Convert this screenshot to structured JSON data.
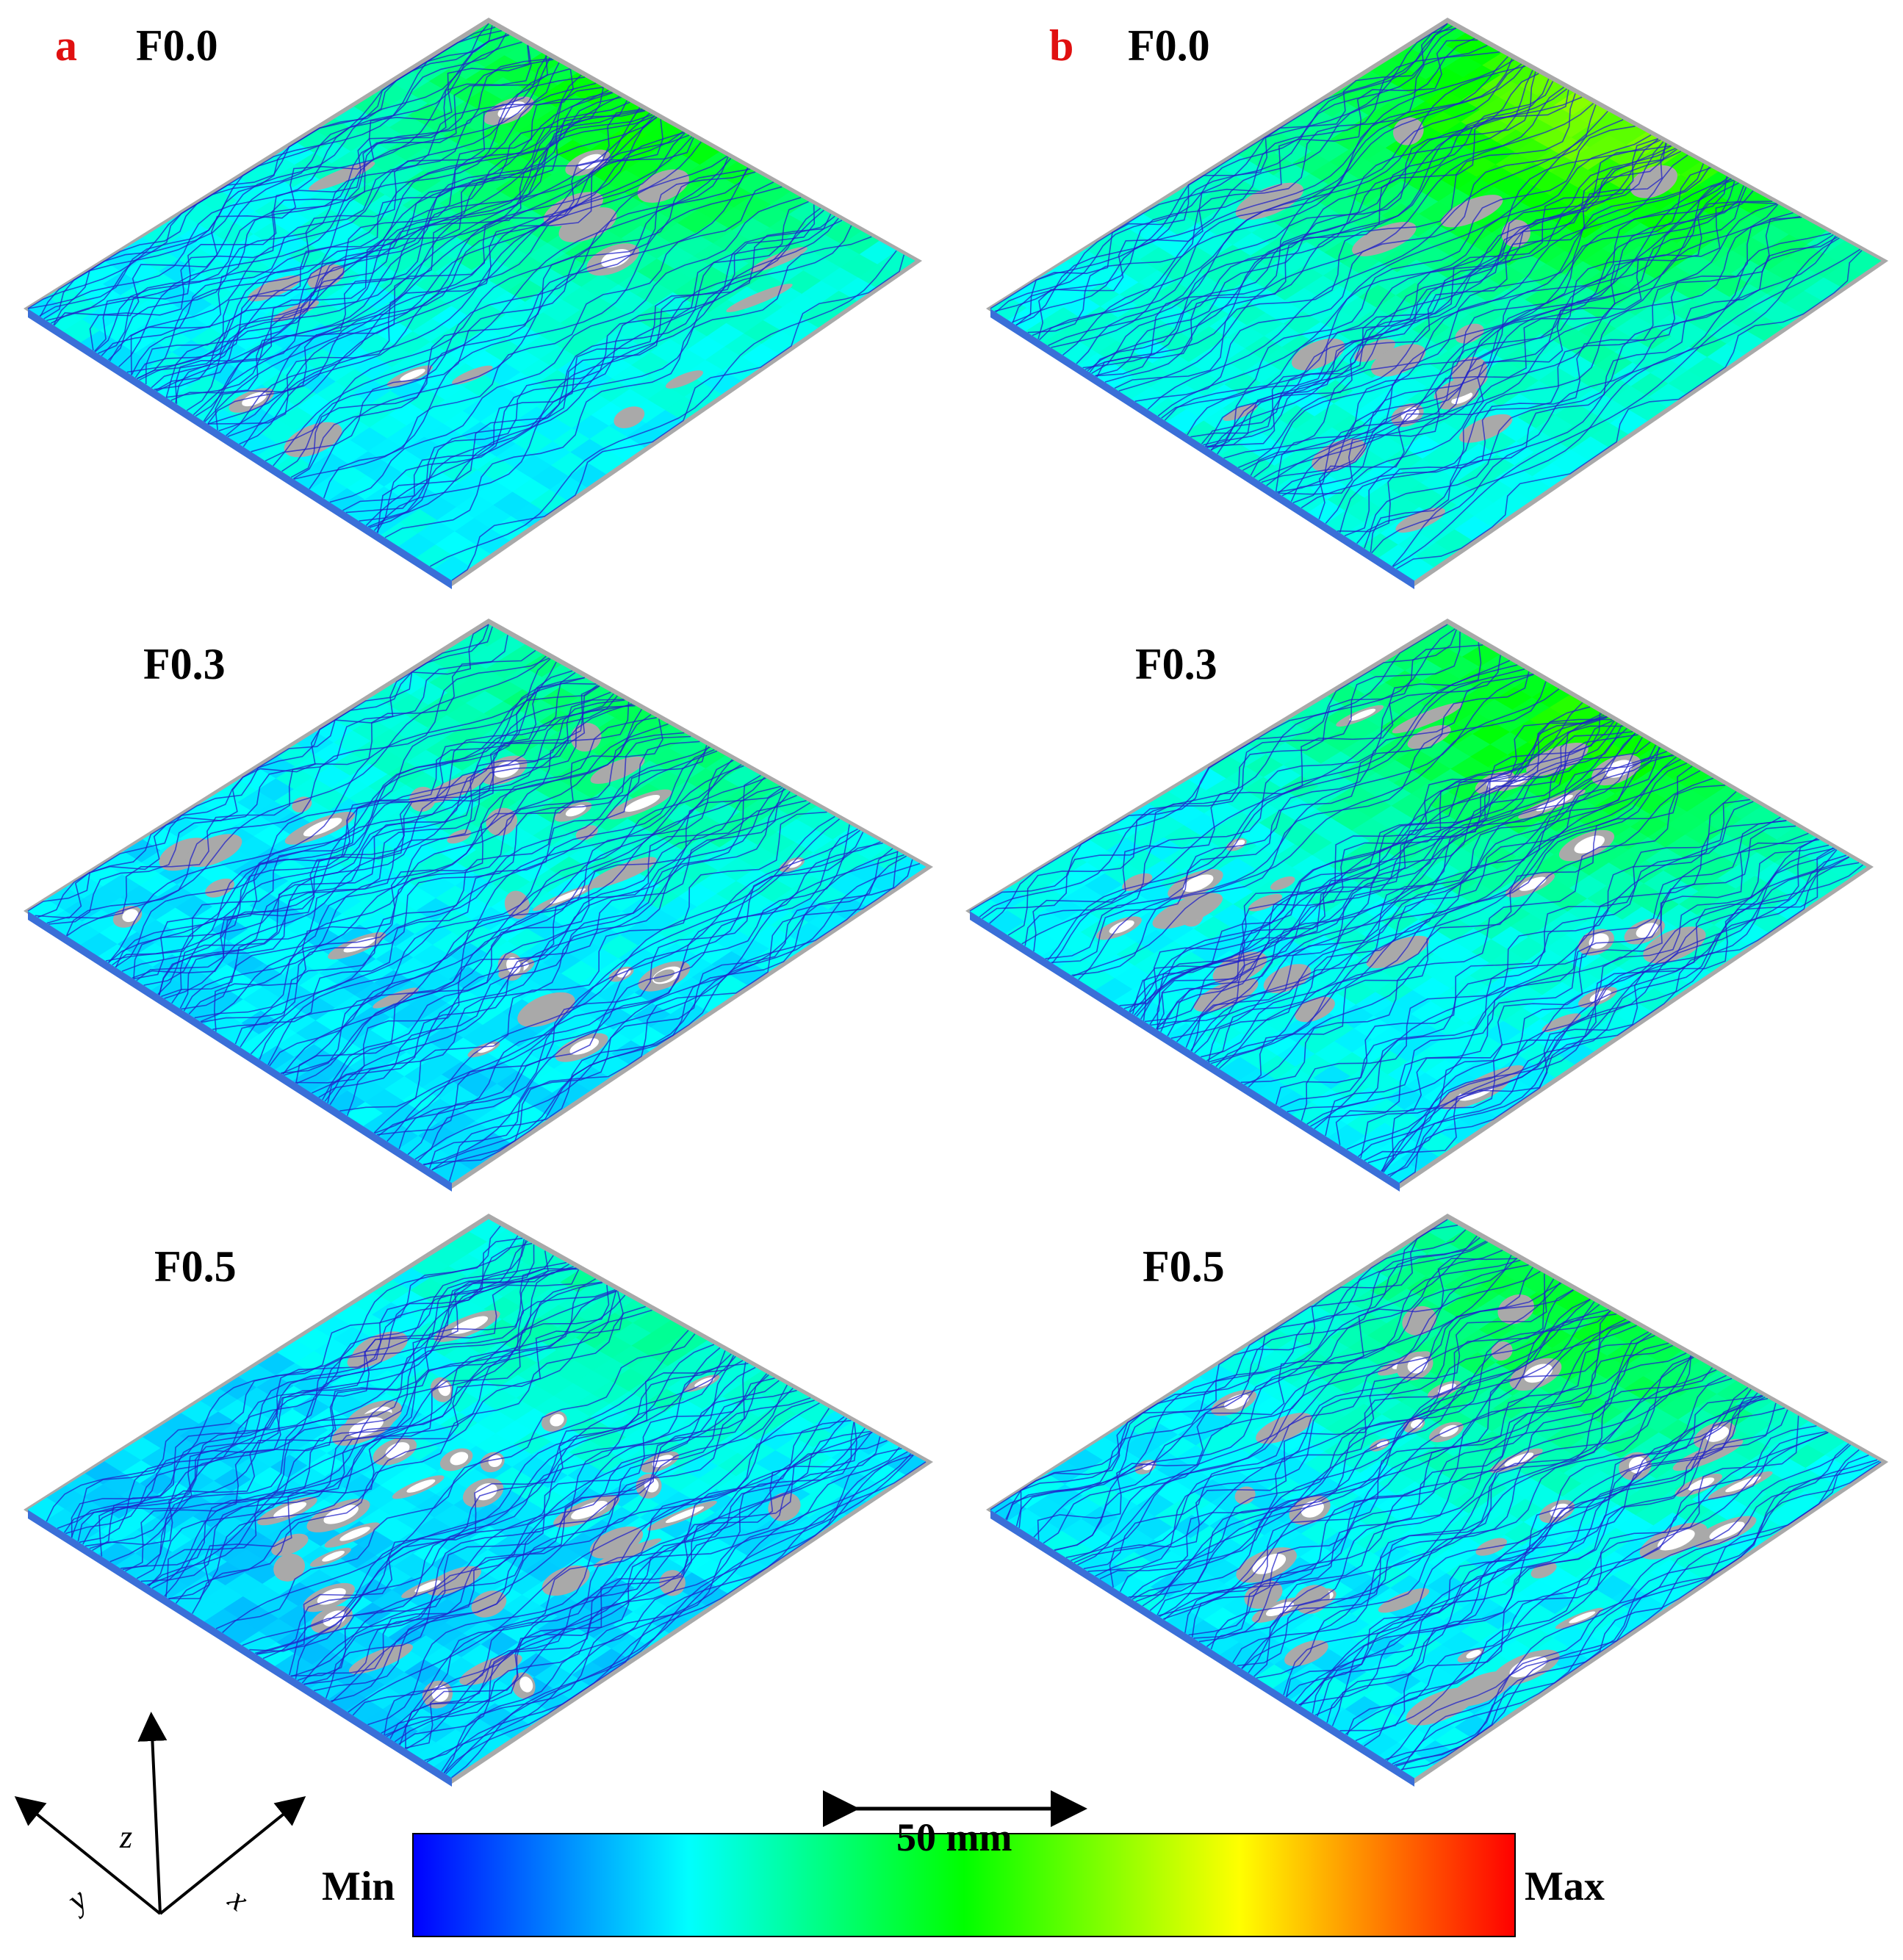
{
  "panels": {
    "a": {
      "letter": "a",
      "rows": [
        {
          "label": "F0.0",
          "fraction": 0.0,
          "intensity": 0.45
        },
        {
          "label": "F0.3",
          "fraction": 0.3,
          "intensity": 0.3
        },
        {
          "label": "F0.5",
          "fraction": 0.5,
          "intensity": 0.22
        }
      ]
    },
    "b": {
      "letter": "b",
      "rows": [
        {
          "label": "F0.0",
          "fraction": 0.0,
          "intensity": 0.62
        },
        {
          "label": "F0.3",
          "fraction": 0.3,
          "intensity": 0.48
        },
        {
          "label": "F0.5",
          "fraction": 0.5,
          "intensity": 0.38
        }
      ]
    }
  },
  "colorbar": {
    "min_label": "Min",
    "max_label": "Max",
    "stops": [
      "#0000ff",
      "#00ffff",
      "#00ff00",
      "#ffff00",
      "#ff0000"
    ]
  },
  "scale_bar": {
    "label": "50 mm"
  },
  "axes": {
    "x": "x",
    "y": "y",
    "z": "z"
  },
  "colors": {
    "void": "#a9a9a9",
    "streamline": "#2020c8",
    "surface": "#2f7de0"
  }
}
